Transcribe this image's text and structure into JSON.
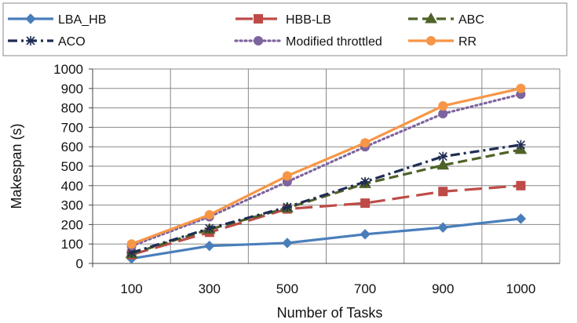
{
  "chart_data": {
    "type": "line",
    "title": "",
    "xlabel": "Number of Tasks",
    "ylabel": "Makespan (s)",
    "categories": [
      "100",
      "300",
      "500",
      "700",
      "900",
      "1000"
    ],
    "ylim": [
      0,
      1000
    ],
    "yticks": [
      0,
      100,
      200,
      300,
      400,
      500,
      600,
      700,
      800,
      900,
      1000
    ],
    "grid": true,
    "legend_position": "top",
    "series": [
      {
        "name": "LBA_HB",
        "values": [
          25,
          90,
          105,
          150,
          185,
          230
        ],
        "color": "#4a7ebb",
        "dash": "solid",
        "marker": "diamond"
      },
      {
        "name": "HBB-LB",
        "values": [
          45,
          160,
          280,
          310,
          370,
          400
        ],
        "color": "#be4b48",
        "dash": "long-dash",
        "marker": "square"
      },
      {
        "name": "ABC",
        "values": [
          50,
          175,
          285,
          410,
          505,
          585
        ],
        "color": "#4f6228",
        "dash": "dash",
        "marker": "triangle"
      },
      {
        "name": "ACO",
        "values": [
          55,
          180,
          290,
          420,
          550,
          610
        ],
        "color": "#1f2d54",
        "dash": "dash-dot",
        "marker": "star"
      },
      {
        "name": "Modified throttled",
        "values": [
          90,
          240,
          420,
          600,
          770,
          870
        ],
        "color": "#7e649e",
        "dash": "dot",
        "marker": "circle"
      },
      {
        "name": "RR",
        "values": [
          100,
          250,
          450,
          620,
          810,
          900
        ],
        "color": "#f79646",
        "dash": "solid",
        "marker": "circle"
      }
    ]
  }
}
